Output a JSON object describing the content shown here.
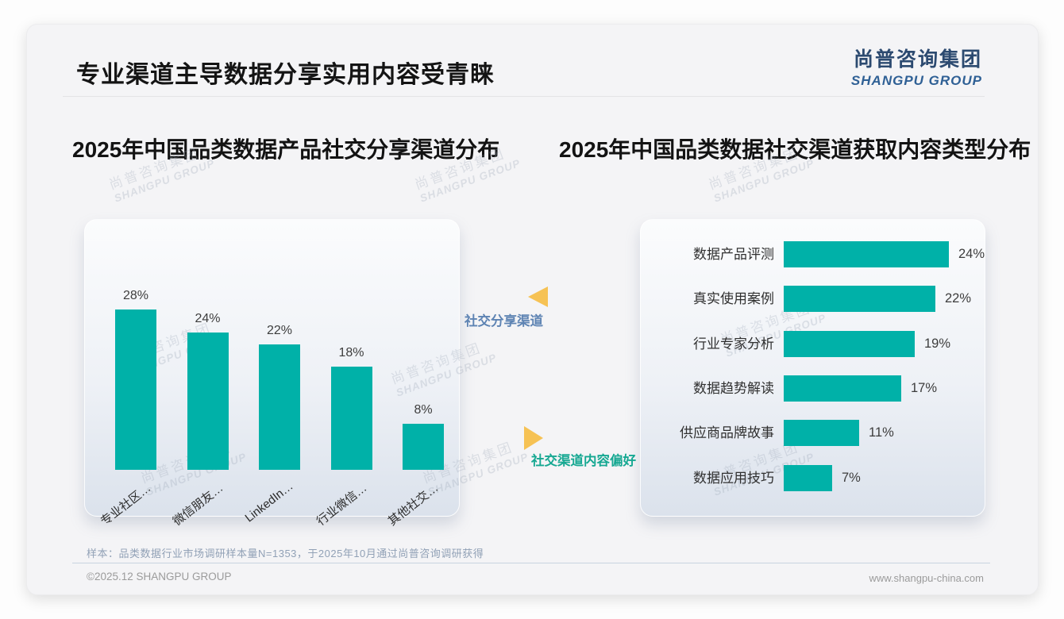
{
  "slide": {
    "title": "专业渠道主导数据分享实用内容受青睐",
    "logo": {
      "cn": "尚普咨询集团",
      "en": "SHANGPU GROUP"
    },
    "watermark": {
      "cn": "尚普咨询集团",
      "en": "SHANGPU GROUP"
    },
    "annotations": {
      "top": "社交分享渠道",
      "bottom": "社交渠道内容偏好"
    },
    "footer": {
      "note": "样本：品类数据行业市场调研样本量N=1353，于2025年10月通过尚普咨询调研获得",
      "copyright": "©2025.12 SHANGPU GROUP",
      "website": "www.shangpu-china.com"
    },
    "colors": {
      "bar_teal": "#00b1a8",
      "annotation_blue": "#5d83b3",
      "annotation_teal": "#16a892",
      "triangle_yellow": "#f6c254",
      "logo_navy": "#2c4a70",
      "logo_blue": "#2f6095"
    }
  },
  "chart_data": [
    {
      "type": "bar",
      "orientation": "vertical",
      "title": "2025年中国品类数据产品社交分享渠道分布",
      "categories": [
        "专业社区…",
        "微信朋友…",
        "LinkedIn…",
        "行业微信…",
        "其他社交…"
      ],
      "values": [
        28,
        24,
        22,
        18,
        8
      ],
      "unit": "%",
      "value_labels": [
        "28%",
        "24%",
        "22%",
        "18%",
        "8%"
      ],
      "bar_color": "#00b1a8",
      "ylim": [
        0,
        30
      ],
      "grid": false,
      "legend": "none",
      "value_label_position": "above"
    },
    {
      "type": "bar",
      "orientation": "horizontal",
      "title": "2025年中国品类数据社交渠道获取内容类型分布",
      "categories": [
        "数据产品评测",
        "真实使用案例",
        "行业专家分析",
        "数据趋势解读",
        "供应商品牌故事",
        "数据应用技巧"
      ],
      "values": [
        24,
        22,
        19,
        17,
        11,
        7
      ],
      "unit": "%",
      "value_labels": [
        "24%",
        "22%",
        "19%",
        "17%",
        "11%",
        "7%"
      ],
      "bar_color": "#00b1a8",
      "xlim": [
        0,
        28
      ],
      "grid": false,
      "legend": "none",
      "value_label_position": "right"
    }
  ]
}
